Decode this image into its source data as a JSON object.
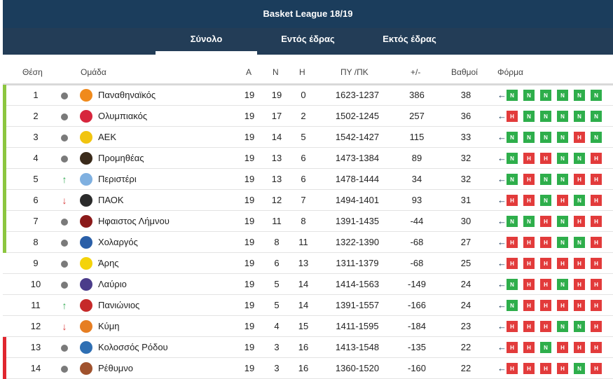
{
  "title": "Basket League 18/19",
  "tabs": [
    {
      "label": "Σύνολο"
    },
    {
      "label": "Εντός έδρας"
    },
    {
      "label": "Εκτός έδρας"
    }
  ],
  "headers": {
    "position": "Θέση",
    "team": "Ομάδα",
    "played": "Α",
    "wins": "Ν",
    "losses": "Η",
    "points_for_against": "ΠΥ /ΠΚ",
    "diff": "+/-",
    "score": "Βαθμοί",
    "form": "Φόρμα"
  },
  "colors": {
    "header_bg": "#1b3d5c",
    "tabs_bg": "#233d57",
    "playoff_bar": "#8cc63f",
    "relegation_bar": "#e0262f",
    "win": "#2eae4b",
    "loss": "#e23b3b"
  },
  "rows": [
    {
      "pos": "1",
      "trend": "same",
      "team": "Παναθηναϊκός",
      "logo_color": "#f08a1c",
      "a": "19",
      "n": "19",
      "h": "0",
      "pypk": "1623-1237",
      "diff": "386",
      "score": "38",
      "zone": "playoff",
      "form": [
        "Ν",
        "Ν",
        "Ν",
        "Ν",
        "Ν",
        "Ν"
      ]
    },
    {
      "pos": "2",
      "trend": "same",
      "team": "Ολυμπιακός",
      "logo_color": "#d7263d",
      "a": "19",
      "n": "17",
      "h": "2",
      "pypk": "1502-1245",
      "diff": "257",
      "score": "36",
      "zone": "playoff",
      "form": [
        "Η",
        "Ν",
        "Ν",
        "Ν",
        "Ν",
        "Ν"
      ]
    },
    {
      "pos": "3",
      "trend": "same",
      "team": "ΑΕΚ",
      "logo_color": "#f1c40f",
      "a": "19",
      "n": "14",
      "h": "5",
      "pypk": "1542-1427",
      "diff": "115",
      "score": "33",
      "zone": "playoff",
      "form": [
        "Ν",
        "Ν",
        "Ν",
        "Ν",
        "Η",
        "Ν"
      ]
    },
    {
      "pos": "4",
      "trend": "same",
      "team": "Προμηθέας",
      "logo_color": "#3a2a1a",
      "a": "19",
      "n": "13",
      "h": "6",
      "pypk": "1473-1384",
      "diff": "89",
      "score": "32",
      "zone": "playoff",
      "form": [
        "Ν",
        "Η",
        "Η",
        "Ν",
        "Ν",
        "Η"
      ]
    },
    {
      "pos": "5",
      "trend": "up",
      "team": "Περιστέρι",
      "logo_color": "#7fb0e0",
      "a": "19",
      "n": "13",
      "h": "6",
      "pypk": "1478-1444",
      "diff": "34",
      "score": "32",
      "zone": "playoff",
      "form": [
        "Ν",
        "Η",
        "Ν",
        "Ν",
        "Η",
        "Η"
      ]
    },
    {
      "pos": "6",
      "trend": "down",
      "team": "ΠΑΟΚ",
      "logo_color": "#2b2b2b",
      "a": "19",
      "n": "12",
      "h": "7",
      "pypk": "1494-1401",
      "diff": "93",
      "score": "31",
      "zone": "playoff",
      "form": [
        "Η",
        "Η",
        "Ν",
        "Η",
        "Ν",
        "Η"
      ]
    },
    {
      "pos": "7",
      "trend": "same",
      "team": "Ηφαιστος Λήμνου",
      "logo_color": "#8b1a1a",
      "a": "19",
      "n": "11",
      "h": "8",
      "pypk": "1391-1435",
      "diff": "-44",
      "score": "30",
      "zone": "playoff",
      "form": [
        "Ν",
        "Ν",
        "Η",
        "Ν",
        "Η",
        "Η"
      ]
    },
    {
      "pos": "8",
      "trend": "same",
      "team": "Χολαργός",
      "logo_color": "#2a5fa8",
      "a": "19",
      "n": "8",
      "h": "11",
      "pypk": "1322-1390",
      "diff": "-68",
      "score": "27",
      "zone": "playoff",
      "form": [
        "Η",
        "Η",
        "Η",
        "Ν",
        "Ν",
        "Η"
      ]
    },
    {
      "pos": "9",
      "trend": "same",
      "team": "Άρης",
      "logo_color": "#f4d30a",
      "a": "19",
      "n": "6",
      "h": "13",
      "pypk": "1311-1379",
      "diff": "-68",
      "score": "25",
      "zone": "none",
      "form": [
        "Η",
        "Η",
        "Η",
        "Η",
        "Η",
        "Η"
      ]
    },
    {
      "pos": "10",
      "trend": "same",
      "team": "Λαύριο",
      "logo_color": "#4b3c8a",
      "a": "19",
      "n": "5",
      "h": "14",
      "pypk": "1414-1563",
      "diff": "-149",
      "score": "24",
      "zone": "none",
      "form": [
        "Ν",
        "Η",
        "Η",
        "Ν",
        "Η",
        "Η"
      ]
    },
    {
      "pos": "11",
      "trend": "up",
      "team": "Πανιώνιος",
      "logo_color": "#c62a2a",
      "a": "19",
      "n": "5",
      "h": "14",
      "pypk": "1391-1557",
      "diff": "-166",
      "score": "24",
      "zone": "none",
      "form": [
        "Ν",
        "Η",
        "Η",
        "Η",
        "Η",
        "Η"
      ]
    },
    {
      "pos": "12",
      "trend": "down",
      "team": "Κύμη",
      "logo_color": "#e67e22",
      "a": "19",
      "n": "4",
      "h": "15",
      "pypk": "1411-1595",
      "diff": "-184",
      "score": "23",
      "zone": "none",
      "form": [
        "Η",
        "Η",
        "Η",
        "Ν",
        "Ν",
        "Η"
      ]
    },
    {
      "pos": "13",
      "trend": "same",
      "team": "Κολοσσός Ρόδου",
      "logo_color": "#2f6fb3",
      "a": "19",
      "n": "3",
      "h": "16",
      "pypk": "1413-1548",
      "diff": "-135",
      "score": "22",
      "zone": "relegation",
      "form": [
        "Η",
        "Η",
        "Ν",
        "Η",
        "Η",
        "Η"
      ]
    },
    {
      "pos": "14",
      "trend": "same",
      "team": "Ρέθυμνο",
      "logo_color": "#a0522d",
      "a": "19",
      "n": "3",
      "h": "16",
      "pypk": "1360-1520",
      "diff": "-160",
      "score": "22",
      "zone": "relegation",
      "form": [
        "Η",
        "Η",
        "Η",
        "Η",
        "Ν",
        "Η"
      ]
    }
  ]
}
